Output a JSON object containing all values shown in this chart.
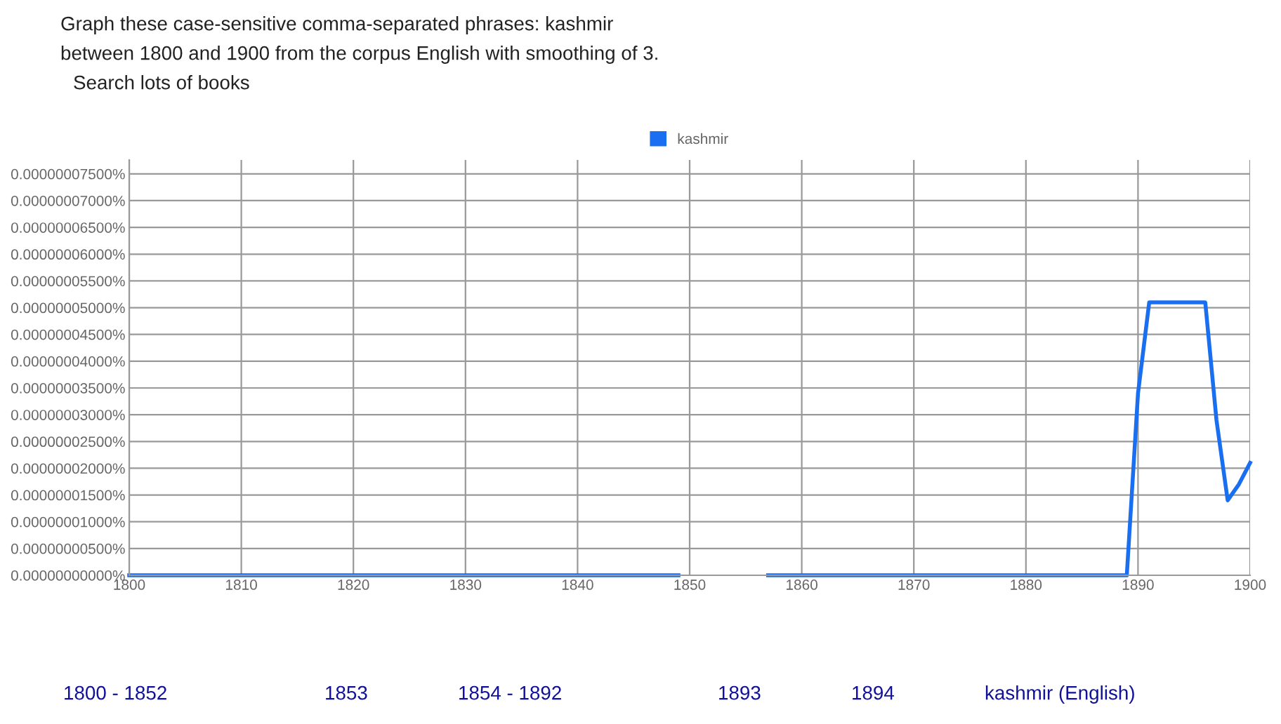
{
  "chart_data": {
    "type": "line",
    "x": [
      1800,
      1849,
      1850,
      1856,
      1857,
      1889,
      1890,
      1891,
      1896,
      1897,
      1898,
      1899,
      1900
    ],
    "series": [
      {
        "name": "kashmir",
        "color": "#1a6ef0",
        "values": [
          0,
          0,
          null,
          null,
          0,
          0,
          3.4e-08,
          5.1e-08,
          5.1e-08,
          2.9e-08,
          1.4e-08,
          1.7e-08,
          2.1e-08
        ]
      }
    ],
    "xlim": [
      1800,
      1900
    ],
    "xticks": [
      1800,
      1810,
      1820,
      1830,
      1840,
      1850,
      1860,
      1870,
      1880,
      1890,
      1900
    ],
    "ylim": [
      0,
      7.76e-08
    ],
    "yticks": [
      {
        "value": 0,
        "label": "0.00000000000%"
      },
      {
        "value": 5e-09,
        "label": "0.00000000500%"
      },
      {
        "value": 1e-08,
        "label": "0.00000001000%"
      },
      {
        "value": 1.5e-08,
        "label": "0.00000001500%"
      },
      {
        "value": 2e-08,
        "label": "0.00000002000%"
      },
      {
        "value": 2.5e-08,
        "label": "0.00000002500%"
      },
      {
        "value": 3e-08,
        "label": "0.00000003000%"
      },
      {
        "value": 3.5e-08,
        "label": "0.00000003500%"
      },
      {
        "value": 4e-08,
        "label": "0.00000004000%"
      },
      {
        "value": 4.5e-08,
        "label": "0.00000004500%"
      },
      {
        "value": 5e-08,
        "label": "0.00000005000%"
      },
      {
        "value": 5.5e-08,
        "label": "0.00000005500%"
      },
      {
        "value": 6e-08,
        "label": "0.00000006000%"
      },
      {
        "value": 6.5e-08,
        "label": "0.00000006500%"
      },
      {
        "value": 7e-08,
        "label": "0.00000007000%"
      },
      {
        "value": 7.5e-08,
        "label": "0.00000007500%"
      }
    ],
    "grid": true,
    "legend": "top",
    "marker": "none",
    "line_style": "solid",
    "annotations": [
      "Graph these case-sensitive comma-separated phrases: kashmir",
      "between 1800 and 1900 from the corpus English with smoothing of 3.",
      "Search lots of books",
      "1800 - 1852",
      "1853",
      "1854 - 1892",
      "1893",
      "1894",
      "kashmir (English)"
    ]
  }
}
